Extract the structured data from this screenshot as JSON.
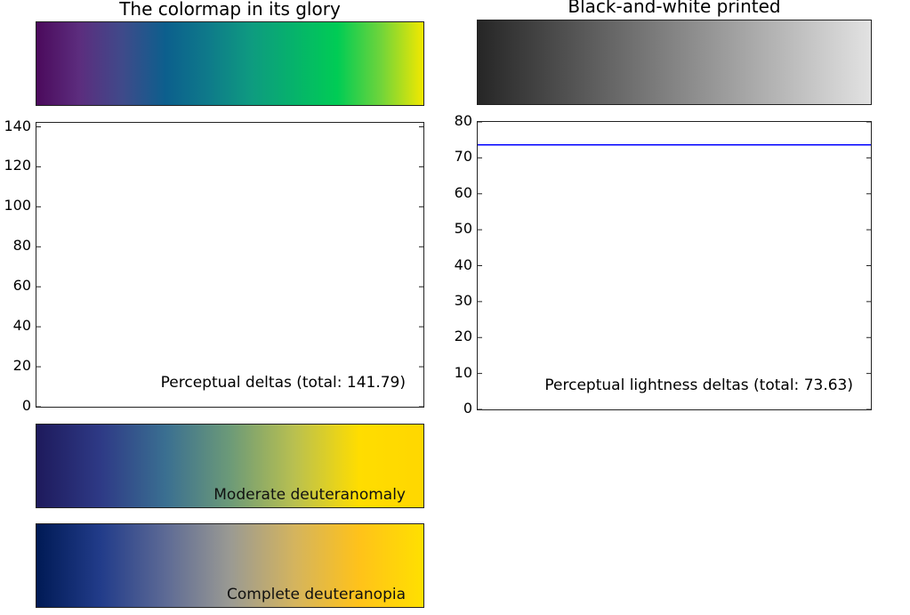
{
  "titles": {
    "glory": "The colormap in its glory",
    "bw": "Black-and-white printed"
  },
  "strips": {
    "moderate_label": "Moderate deuteranomaly",
    "complete_label": "Complete deuteranopia"
  },
  "colors": {
    "glory_gradient": [
      "#4b0a5c",
      "#5c2d7e",
      "#3f4a8a",
      "#0c5f8d",
      "#0e7a8a",
      "#0e9b80",
      "#06b36b",
      "#00cc55",
      "#6ed43b",
      "#f2e800"
    ],
    "bw_gradient": [
      "#262626",
      "#e2e2e2"
    ],
    "moderate_gradient": [
      "#1e1a5c",
      "#2e3a86",
      "#3a6f91",
      "#6c9a78",
      "#b9c050",
      "#ffdd00",
      "#ffd700"
    ],
    "complete_gradient": [
      "#001a55",
      "#223c8a",
      "#5d6a95",
      "#9a9a93",
      "#d4b45e",
      "#ffc21a",
      "#ffe000"
    ],
    "line": "#0000ff"
  },
  "chart_data": [
    {
      "type": "line",
      "name": "perceptual-deltas",
      "annotation": "Perceptual deltas (total: 141.79)",
      "ylim": [
        0,
        142
      ],
      "yticks": [
        0,
        20,
        40,
        60,
        80,
        100,
        120,
        140
      ],
      "series": []
    },
    {
      "type": "line",
      "name": "perceptual-lightness-deltas",
      "annotation": "Perceptual lightness deltas (total: 73.63)",
      "ylim": [
        0,
        80
      ],
      "yticks": [
        0,
        10,
        20,
        30,
        40,
        50,
        60,
        70,
        80
      ],
      "series": [
        {
          "name": "lightness-delta",
          "x": [
            0,
            1
          ],
          "y": [
            73.63,
            73.63
          ]
        }
      ]
    }
  ]
}
